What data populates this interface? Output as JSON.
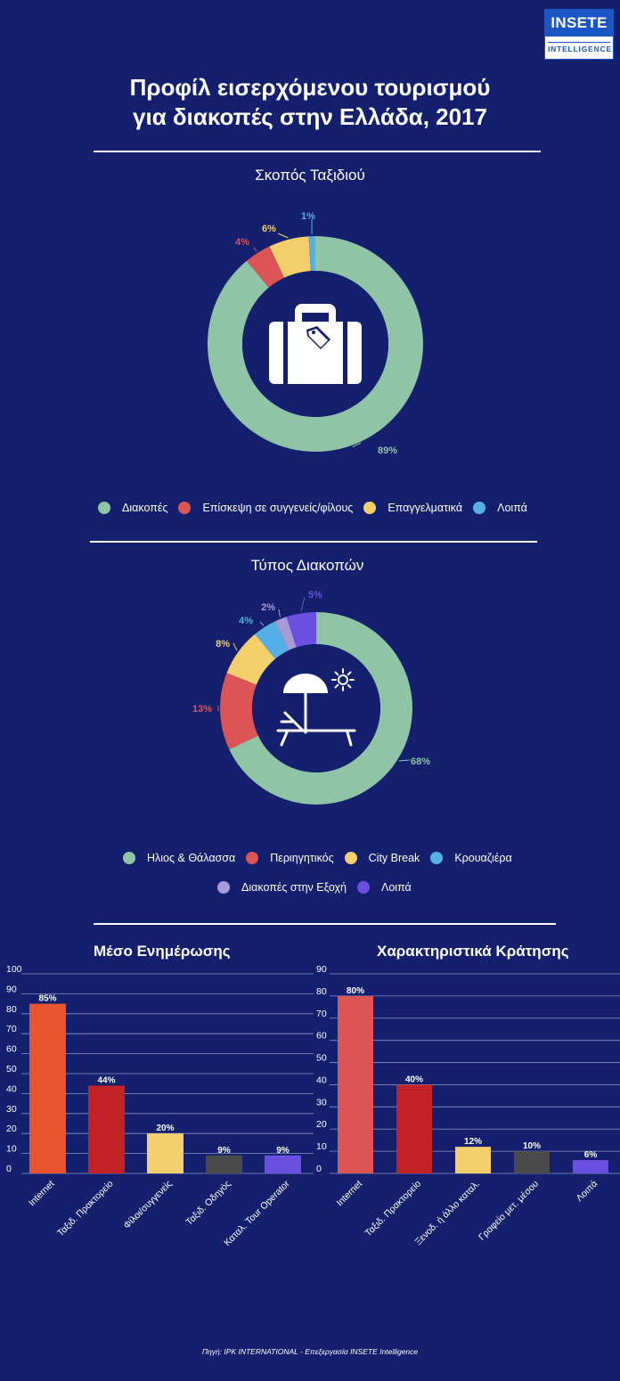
{
  "logo": {
    "top": "INSETE",
    "bottom": "INTELLIGENCE"
  },
  "title": {
    "line1": "Προφίλ εισερχόμενου τουρισμού",
    "line2": "για διακοπές στην Ελλάδα, 2017"
  },
  "source": "Πηγή: IPK INTERNATIONAL - Επεξεργασία INSETE Intelligence",
  "chart_data": [
    {
      "type": "pie",
      "title": "Σκοπός Ταξιδιού",
      "icon": "suitcase-icon",
      "categories": [
        "Διακοπές",
        "Επίσκεψη σε συγγενείς/φίλους",
        "Επαγγελματικά",
        "Λοιπά"
      ],
      "values": [
        89,
        4,
        6,
        1
      ],
      "value_labels": [
        "89%",
        "4%",
        "6%",
        "1%"
      ],
      "colors": [
        "#8fc4a6",
        "#dc5456",
        "#f2cf6a",
        "#56b0e8"
      ]
    },
    {
      "type": "pie",
      "title": "Τύπος Διακοπών",
      "icon": "beach-umbrella-lounger-icon",
      "categories": [
        "Ηλιος & Θάλασσα",
        "Περιηγητικός",
        "City Break",
        "Κρουαζιέρα",
        "Διακοπές στην Εξοχή",
        "Λοιπά"
      ],
      "values": [
        68,
        13,
        8,
        4,
        2,
        5
      ],
      "value_labels": [
        "68%",
        "13%",
        "8%",
        "4%",
        "2%",
        "5%"
      ],
      "colors": [
        "#8fc4a6",
        "#dc5456",
        "#f2cf6a",
        "#56b0e8",
        "#a99ad8",
        "#6a4fe0"
      ]
    },
    {
      "type": "bar",
      "title": "Μέσο Ενημέρωσης",
      "categories": [
        "Internet",
        "Ταξιδ. Πρακτορείο",
        "Φίλοι/συγγενείς",
        "Ταξιδ. Οδηγός",
        "Καταλ. Tour Operator"
      ],
      "values": [
        85,
        44,
        20,
        9,
        9
      ],
      "value_labels": [
        "85%",
        "44%",
        "20%",
        "9%",
        "9%"
      ],
      "colors": [
        "#e8542e",
        "#c02226",
        "#f2cf6a",
        "#4a4a4a",
        "#6a4fe0"
      ],
      "ylim": [
        0,
        100
      ],
      "yticks": [
        0,
        10,
        20,
        30,
        40,
        50,
        60,
        70,
        80,
        90,
        100
      ],
      "grid": true
    },
    {
      "type": "bar",
      "title": "Χαρακτηριστικά Κράτησης",
      "categories": [
        "Internet",
        "Ταξιδ. Πρακτορείο",
        "Ξενοδ. ή άλλο καταλ.",
        "Γραφείο μετ. μέσου",
        "Λοιπά"
      ],
      "values": [
        80,
        40,
        12,
        10,
        6
      ],
      "value_labels": [
        "80%",
        "40%",
        "12%",
        "10%",
        "6%"
      ],
      "colors": [
        "#dc5456",
        "#c02226",
        "#f2cf6a",
        "#4a4a4a",
        "#6a4fe0"
      ],
      "ylim": [
        0,
        90
      ],
      "yticks": [
        0,
        10,
        20,
        30,
        40,
        50,
        60,
        70,
        80,
        90
      ],
      "grid": true
    }
  ]
}
